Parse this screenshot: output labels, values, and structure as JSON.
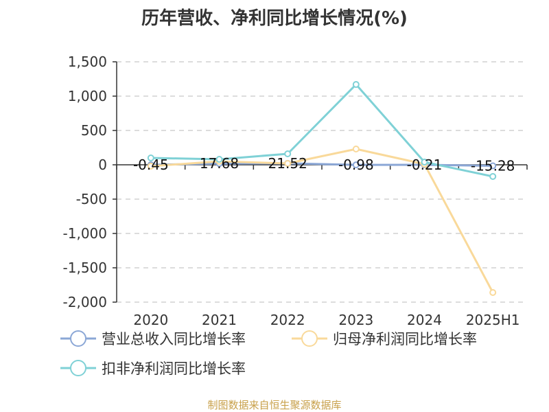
{
  "chart_data": {
    "type": "line",
    "title": "历年营收、净利同比增长情况(%)",
    "categories": [
      "2020",
      "2021",
      "2022",
      "2023",
      "2024",
      "2025H1"
    ],
    "ylim": [
      -2000,
      1500
    ],
    "yticks": [
      1500,
      1000,
      500,
      0,
      -500,
      -1000,
      -1500,
      -2000
    ],
    "ytick_labels": [
      "1,500",
      "1,000",
      "500",
      "0",
      "-500",
      "-1,000",
      "-1,500",
      "-2,000"
    ],
    "grid": true,
    "legend_position": "bottom-left",
    "series": [
      {
        "name": "营业总收入同比增长率",
        "color": "#8ba7d6",
        "values": [
          -0.45,
          17.68,
          21.52,
          -0.98,
          -0.21,
          -15.28
        ],
        "labels": [
          "-0.45",
          "17.68",
          "21.52",
          "-0.98",
          "-0.21",
          "-15.28"
        ]
      },
      {
        "name": "归母净利润同比增长率",
        "color": "#f9d99a",
        "values": [
          -20,
          50,
          20,
          230,
          10,
          -1860
        ]
      },
      {
        "name": "扣非净利润同比增长率",
        "color": "#7fd1d6",
        "values": [
          100,
          80,
          160,
          1170,
          40,
          -170
        ]
      }
    ],
    "source": "制图数据来自恒生聚源数据库"
  }
}
